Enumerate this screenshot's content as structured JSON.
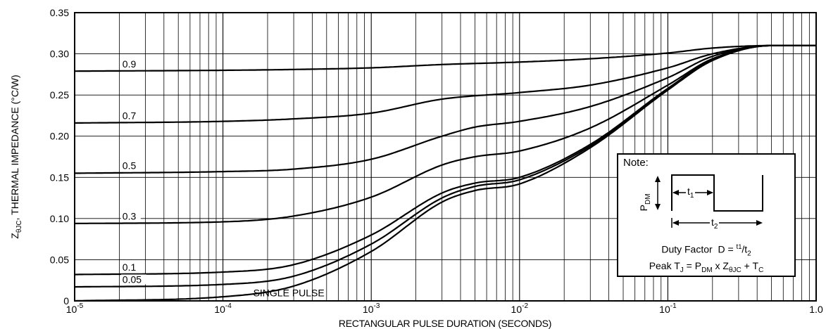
{
  "chart_data": {
    "type": "line",
    "xscale": "log",
    "xlim": [
      1e-05,
      1.0
    ],
    "ylim": [
      0,
      0.35
    ],
    "xlabel": "RECTANGULAR PULSE DURATION (SECONDS)",
    "ylabel_main": "Z",
    "ylabel_sub": "θJC",
    "ylabel_rest": ", THERMAL IMPEDANCE (°C/W)",
    "xticks": [
      {
        "base": "10",
        "exp": "-5",
        "value": 1e-05
      },
      {
        "base": "10",
        "exp": "-4",
        "value": 0.0001
      },
      {
        "base": "10",
        "exp": "-3",
        "value": 0.001
      },
      {
        "base": "10",
        "exp": "-2",
        "value": 0.01
      },
      {
        "base": "10",
        "exp": "-1",
        "value": 0.1
      },
      {
        "base": "1.0",
        "exp": "",
        "value": 1.0
      }
    ],
    "yticks": [
      "0",
      "0.05",
      "0.10",
      "0.15",
      "0.20",
      "0.25",
      "0.30",
      "0.35"
    ],
    "grid": true,
    "series": [
      {
        "name": "0.9",
        "label_at": 2.5e-05,
        "x": [
          1e-05,
          0.0001,
          0.0003,
          0.001,
          0.003,
          0.01,
          0.03,
          0.1,
          0.2,
          0.5,
          1.0
        ],
        "y": [
          0.279,
          0.28,
          0.281,
          0.283,
          0.287,
          0.29,
          0.294,
          0.301,
          0.307,
          0.31,
          0.31
        ]
      },
      {
        "name": "0.7",
        "label_at": 2.5e-05,
        "x": [
          1e-05,
          0.0001,
          0.0003,
          0.001,
          0.003,
          0.01,
          0.03,
          0.1,
          0.2,
          0.5,
          1.0
        ],
        "y": [
          0.216,
          0.218,
          0.221,
          0.228,
          0.245,
          0.253,
          0.262,
          0.283,
          0.3,
          0.31,
          0.31
        ]
      },
      {
        "name": "0.5",
        "label_at": 2.5e-05,
        "x": [
          1e-05,
          0.0001,
          0.0003,
          0.001,
          0.003,
          0.005,
          0.01,
          0.03,
          0.1,
          0.2,
          0.5,
          1.0
        ],
        "y": [
          0.155,
          0.157,
          0.16,
          0.172,
          0.2,
          0.211,
          0.218,
          0.236,
          0.271,
          0.297,
          0.31,
          0.31
        ]
      },
      {
        "name": "0.3",
        "label_at": 2.5e-05,
        "x": [
          1e-05,
          0.0001,
          0.0003,
          0.001,
          0.003,
          0.005,
          0.01,
          0.03,
          0.1,
          0.2,
          0.5,
          1.0
        ],
        "y": [
          0.094,
          0.096,
          0.103,
          0.126,
          0.165,
          0.175,
          0.182,
          0.21,
          0.262,
          0.294,
          0.31,
          0.31
        ]
      },
      {
        "name": "0.1",
        "label_at": 2.5e-05,
        "x": [
          1e-05,
          0.0001,
          0.0003,
          0.001,
          0.003,
          0.005,
          0.01,
          0.03,
          0.1,
          0.2,
          0.5,
          1.0
        ],
        "y": [
          0.032,
          0.035,
          0.044,
          0.08,
          0.131,
          0.143,
          0.15,
          0.19,
          0.258,
          0.293,
          0.31,
          0.31
        ]
      },
      {
        "name": "0.05",
        "label_at": 2.5e-05,
        "x": [
          1e-05,
          0.0001,
          0.0003,
          0.001,
          0.003,
          0.005,
          0.01,
          0.03,
          0.1,
          0.2,
          0.5,
          1.0
        ],
        "y": [
          0.017,
          0.02,
          0.03,
          0.069,
          0.125,
          0.139,
          0.147,
          0.188,
          0.257,
          0.292,
          0.31,
          0.31
        ]
      },
      {
        "name": "SINGLE PULSE",
        "label_at": 0.00016,
        "x": [
          1e-05,
          0.0001,
          0.0003,
          0.001,
          0.003,
          0.005,
          0.01,
          0.03,
          0.1,
          0.2,
          0.5,
          1.0
        ],
        "y": [
          0.0,
          0.005,
          0.018,
          0.06,
          0.12,
          0.134,
          0.142,
          0.186,
          0.256,
          0.292,
          0.31,
          0.31
        ]
      }
    ],
    "annotation": {
      "title": "Note:",
      "pdm": "P",
      "pdm_sub": "DM",
      "t1": "t",
      "t1_sub": "1",
      "t2": "t",
      "t2_sub": "2",
      "duty_prefix": "Duty Factor  D = ",
      "duty_num": "t",
      "duty_num_sub": "1",
      "duty_den": "t",
      "duty_den_sub": "2",
      "peak_a": "Peak T",
      "peak_a_sub": "J",
      "peak_b": " = P",
      "peak_b_sub": "DM",
      "peak_c": " x Z",
      "peak_c_sub": "θJC",
      "peak_d": " + T",
      "peak_d_sub": "C"
    }
  }
}
